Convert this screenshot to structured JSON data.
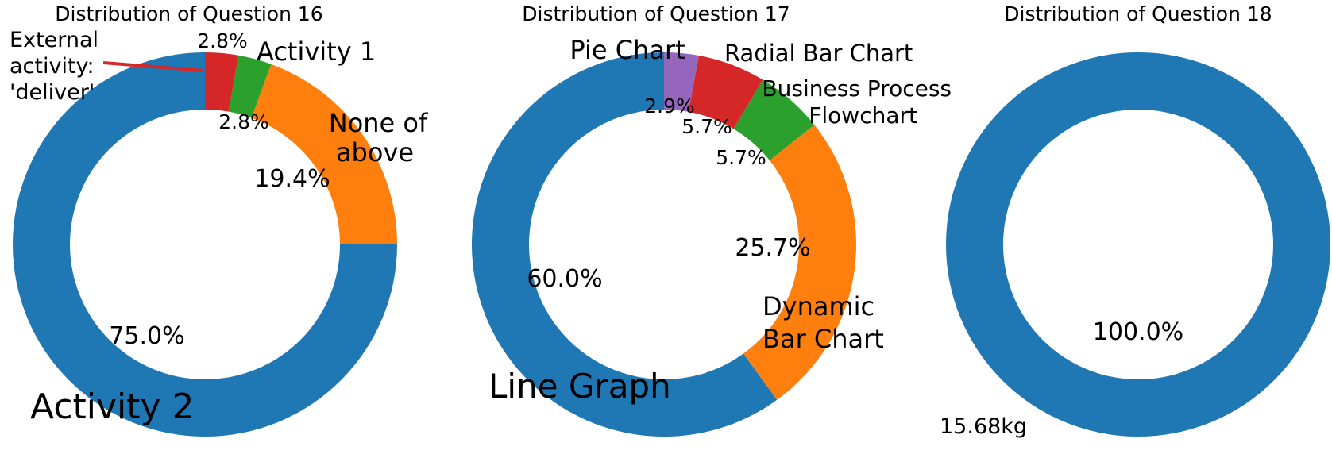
{
  "colors": {
    "blue": "#1f77b4",
    "orange": "#ff7f0e",
    "green": "#2ca02c",
    "red": "#d62728",
    "purple": "#9467bd"
  },
  "chart_data": [
    {
      "type": "pie",
      "donut": true,
      "title": "Distribution of Question 16",
      "slices": [
        {
          "label": "Activity 2",
          "value": 75.0,
          "pct_label": "75.0%",
          "color": "blue"
        },
        {
          "label": "None of above",
          "value": 19.4,
          "pct_label": "19.4%",
          "color": "orange"
        },
        {
          "label": "Activity 1",
          "value": 2.8,
          "pct_label": "2.8%",
          "color": "green"
        },
        {
          "label": "External activity: 'deliver'",
          "value": 2.8,
          "pct_label": "2.8%",
          "color": "red"
        }
      ]
    },
    {
      "type": "pie",
      "donut": true,
      "title": "Distribution of Question 17",
      "slices": [
        {
          "label": "Line Graph",
          "value": 60.0,
          "pct_label": "60.0%",
          "color": "blue"
        },
        {
          "label": "Dynamic Bar Chart",
          "value": 25.7,
          "pct_label": "25.7%",
          "color": "orange"
        },
        {
          "label": "Business Process Flowchart",
          "value": 5.7,
          "pct_label": "5.7%",
          "color": "green"
        },
        {
          "label": "Radial Bar Chart",
          "value": 5.7,
          "pct_label": "5.7%",
          "color": "red"
        },
        {
          "label": "Pie Chart",
          "value": 2.9,
          "pct_label": "2.9%",
          "color": "purple"
        }
      ]
    },
    {
      "type": "pie",
      "donut": true,
      "title": "Distribution of Question 18",
      "slices": [
        {
          "label": "15.68kg",
          "value": 100.0,
          "pct_label": "100.0%",
          "color": "blue"
        }
      ]
    }
  ]
}
